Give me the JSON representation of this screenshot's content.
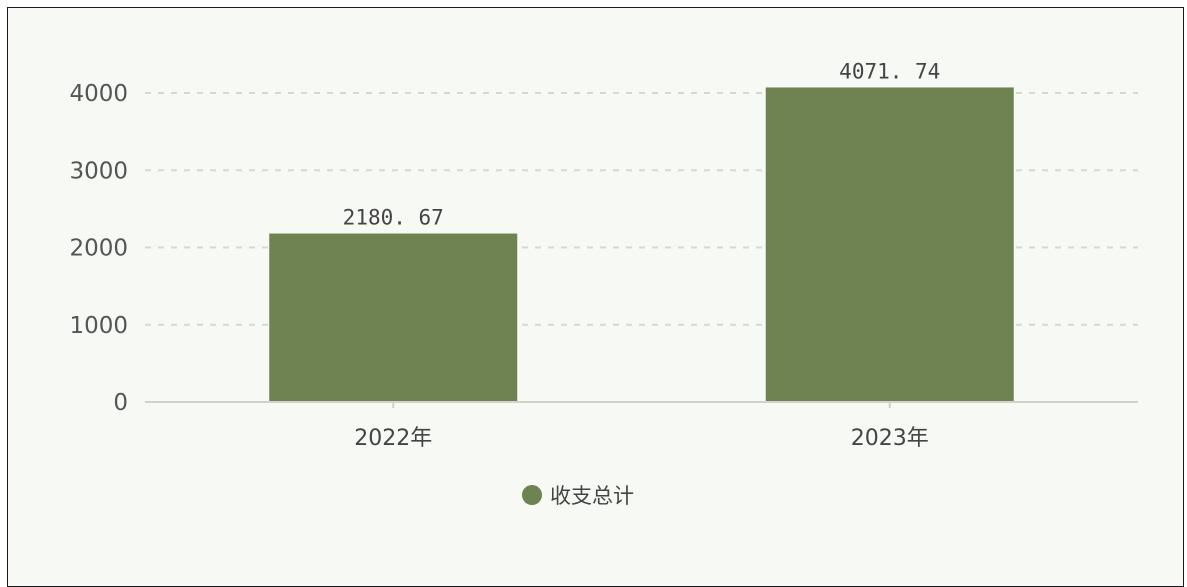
{
  "chart_data": {
    "type": "bar",
    "categories": [
      "2022年",
      "2023年"
    ],
    "series": [
      {
        "name": "收支总计",
        "values": [
          2180.67,
          4071.74
        ],
        "color": "#6e8252"
      }
    ],
    "data_labels": [
      "2180. 67",
      "4071. 74"
    ],
    "title": "",
    "xlabel": "",
    "ylabel": "",
    "ylim": [
      0,
      4000
    ],
    "yticks": [
      0,
      1000,
      2000,
      3000,
      4000
    ],
    "grid": true,
    "legend_position": "bottom"
  }
}
